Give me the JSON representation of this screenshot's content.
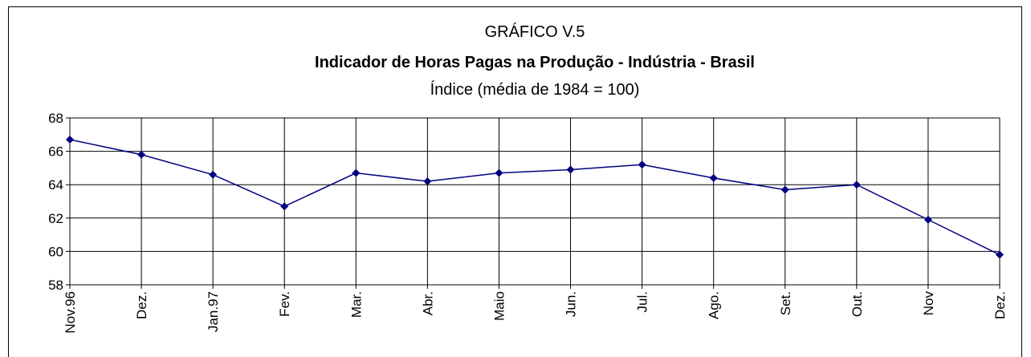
{
  "chart_data": {
    "type": "line",
    "title": "GRÁFICO V.5",
    "subtitle": "Indicador de Horas Pagas na Produção - Indústria - Brasil",
    "y_label": "Índice (média de 1984 = 100)",
    "categories": [
      "Nov.96",
      "Dez.",
      "Jan.97",
      "Fev.",
      "Mar.",
      "Abr.",
      "Maio",
      "Jun.",
      "Jul.",
      "Ago.",
      "Set.",
      "Out.",
      "Nov",
      "Dez."
    ],
    "series": [
      {
        "name": "Indicador de Horas Pagas",
        "color": "#000080",
        "values": [
          66.7,
          65.8,
          64.6,
          62.7,
          64.7,
          64.2,
          64.7,
          64.9,
          65.2,
          64.4,
          63.7,
          64.0,
          61.9,
          59.8
        ]
      }
    ],
    "ylim": [
      58,
      68
    ],
    "yticks": [
      58,
      60,
      62,
      64,
      66,
      68
    ],
    "grid": true
  }
}
